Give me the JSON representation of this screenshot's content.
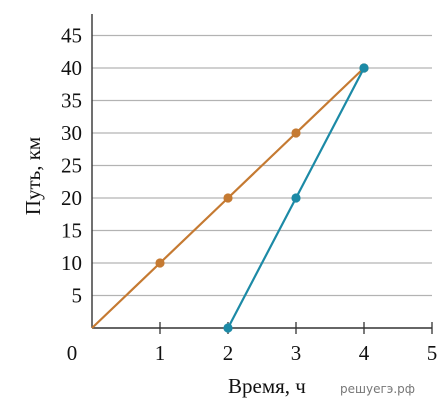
{
  "chart_data": {
    "type": "line",
    "xlabel": "Время, ч",
    "ylabel": "Путь, км",
    "x_ticks": [
      "0",
      "1",
      "2",
      "3",
      "4",
      "5"
    ],
    "y_ticks": [
      "5",
      "10",
      "15",
      "20",
      "25",
      "30",
      "35",
      "40",
      "45"
    ],
    "xlim": [
      0,
      5
    ],
    "ylim": [
      0,
      45
    ],
    "grid": "horizontal",
    "series": [
      {
        "color": "#c57a32",
        "points": [
          [
            0,
            0
          ],
          [
            1,
            10
          ],
          [
            2,
            20
          ],
          [
            3,
            30
          ],
          [
            4,
            40
          ]
        ],
        "markers": [
          [
            1,
            10
          ],
          [
            2,
            20
          ],
          [
            3,
            30
          ],
          [
            4,
            40
          ]
        ]
      },
      {
        "color": "#1c8aa6",
        "points": [
          [
            2,
            0
          ],
          [
            3,
            20
          ],
          [
            4,
            40
          ]
        ],
        "markers": [
          [
            2,
            0
          ],
          [
            3,
            20
          ],
          [
            4,
            40
          ]
        ]
      }
    ]
  },
  "watermark": "решуегэ.рф"
}
